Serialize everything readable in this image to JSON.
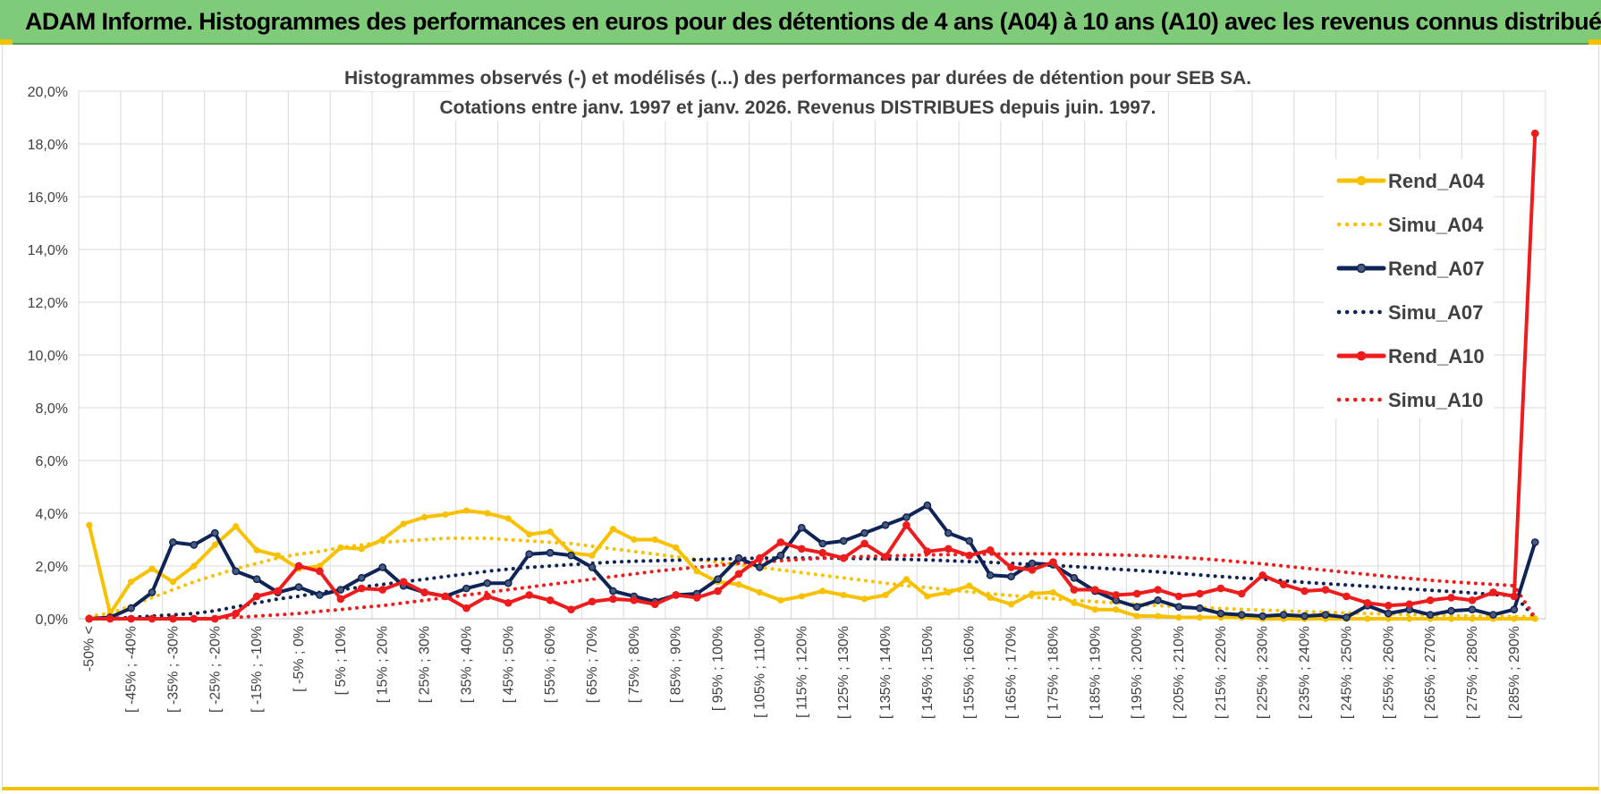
{
  "header": {
    "title": "ADAM Informe. Histogrammes des performances en euros pour des détentions de 4 ans (A04) à 10 ans (A10) avec les revenus connus distribués"
  },
  "colors": {
    "banner": "#7fcb7a",
    "accent": "#f2c200",
    "a04": "#f8c100",
    "a07": "#0e2356",
    "a10": "#ee1c1c",
    "grid": "#d9d9d9"
  },
  "chart_data": {
    "type": "line",
    "title_line1": "Histogrammes observés (-) et modélisés (...) des performances par durées de détention pour SEB SA.",
    "title_line2": "Cotations entre janv. 1997 et janv. 2026. Revenus DISTRIBUES depuis juin. 1997.",
    "ylim": [
      0,
      20
    ],
    "yticks": [
      "0,0%",
      "2,0%",
      "4,0%",
      "6,0%",
      "8,0%",
      "10,0%",
      "12,0%",
      "14,0%",
      "16,0%",
      "18,0%",
      "20,0%"
    ],
    "categories_count": 70,
    "x_labels": [
      {
        "i": 0,
        "text": "-50% <"
      },
      {
        "i": 2,
        "text": "[ -45% ; -40%"
      },
      {
        "i": 4,
        "text": "[ -35% ; -30%"
      },
      {
        "i": 6,
        "text": "[ -25% ; -20%"
      },
      {
        "i": 8,
        "text": "[ -15% ; -10%"
      },
      {
        "i": 10,
        "text": "[ -5% ; 0%"
      },
      {
        "i": 12,
        "text": "[ 5% ; 10%"
      },
      {
        "i": 14,
        "text": "[ 15% ; 20%"
      },
      {
        "i": 16,
        "text": "[ 25% ; 30%"
      },
      {
        "i": 18,
        "text": "[ 35% ; 40%"
      },
      {
        "i": 20,
        "text": "[ 45% ; 50%"
      },
      {
        "i": 22,
        "text": "[ 55% ; 60%"
      },
      {
        "i": 24,
        "text": "[ 65% ; 70%"
      },
      {
        "i": 26,
        "text": "[ 75% ; 80%"
      },
      {
        "i": 28,
        "text": "[ 85% ; 90%"
      },
      {
        "i": 30,
        "text": "[ 95% ; 100%"
      },
      {
        "i": 32,
        "text": "[ 105% ; 110%"
      },
      {
        "i": 34,
        "text": "[ 115% ; 120%"
      },
      {
        "i": 36,
        "text": "[ 125% ; 130%"
      },
      {
        "i": 38,
        "text": "[ 135% ; 140%"
      },
      {
        "i": 40,
        "text": "[ 145% ; 150%"
      },
      {
        "i": 42,
        "text": "[ 155% ; 160%"
      },
      {
        "i": 44,
        "text": "[ 165% ; 170%"
      },
      {
        "i": 46,
        "text": "[ 175% ; 180%"
      },
      {
        "i": 48,
        "text": "[ 185% ; 190%"
      },
      {
        "i": 50,
        "text": "[ 195% ; 200%"
      },
      {
        "i": 52,
        "text": "[ 205% ; 210%"
      },
      {
        "i": 54,
        "text": "[ 215% ; 220%"
      },
      {
        "i": 56,
        "text": "[ 225% ; 230%"
      },
      {
        "i": 58,
        "text": "[ 235% ; 240%"
      },
      {
        "i": 60,
        "text": "[ 245% ; 250%"
      },
      {
        "i": 62,
        "text": "[ 255% ; 260%"
      },
      {
        "i": 64,
        "text": "[ 265% ; 270%"
      },
      {
        "i": 66,
        "text": "[ 275% ; 280%"
      },
      {
        "i": 68,
        "text": "[ 285% ; 290%"
      }
    ],
    "series": [
      {
        "name": "Rend_A04",
        "style": "solid",
        "color": "#f8c100",
        "values": [
          3.55,
          0.2,
          1.4,
          1.9,
          1.4,
          2.0,
          2.8,
          3.5,
          2.6,
          2.4,
          1.9,
          2.0,
          2.7,
          2.65,
          3.0,
          3.6,
          3.85,
          3.95,
          4.1,
          4.0,
          3.8,
          3.2,
          3.3,
          2.5,
          2.4,
          3.4,
          3.0,
          3.0,
          2.7,
          1.8,
          1.4,
          1.3,
          1.0,
          0.7,
          0.85,
          1.05,
          0.9,
          0.75,
          0.9,
          1.5,
          0.85,
          1.0,
          1.25,
          0.8,
          0.55,
          0.95,
          1.0,
          0.6,
          0.35,
          0.35,
          0.1,
          0.1,
          0.05,
          0.05,
          0.05,
          0.05,
          0.0,
          0.0,
          0.0,
          0.0,
          0.0,
          0.0,
          0.0,
          0.0,
          0.0,
          0.0,
          0.0,
          0.0,
          0.0,
          0.0
        ]
      },
      {
        "name": "Simu_A04",
        "style": "dotted",
        "color": "#f8c100",
        "values": [
          0.1,
          0.2,
          0.5,
          0.8,
          1.1,
          1.4,
          1.65,
          1.9,
          2.1,
          2.3,
          2.45,
          2.55,
          2.7,
          2.8,
          2.9,
          2.95,
          3.0,
          3.05,
          3.05,
          3.05,
          3.0,
          2.95,
          2.9,
          2.85,
          2.75,
          2.65,
          2.55,
          2.45,
          2.35,
          2.25,
          2.15,
          2.05,
          1.95,
          1.85,
          1.75,
          1.65,
          1.55,
          1.45,
          1.35,
          1.25,
          1.18,
          1.1,
          1.02,
          0.95,
          0.88,
          0.82,
          0.76,
          0.7,
          0.65,
          0.6,
          0.55,
          0.5,
          0.46,
          0.42,
          0.39,
          0.36,
          0.33,
          0.3,
          0.27,
          0.25,
          0.22,
          0.2,
          0.18,
          0.16,
          0.14,
          0.12,
          0.1,
          0.09,
          0.08,
          0.07
        ]
      },
      {
        "name": "Rend_A07",
        "style": "solid-marker",
        "color": "#0e2356",
        "values": [
          0.0,
          0.05,
          0.4,
          1.0,
          2.9,
          2.8,
          3.25,
          1.8,
          1.5,
          1.0,
          1.2,
          0.9,
          1.1,
          1.55,
          1.95,
          1.25,
          1.0,
          0.85,
          1.15,
          1.35,
          1.35,
          2.45,
          2.5,
          2.4,
          1.95,
          1.05,
          0.85,
          0.65,
          0.9,
          0.95,
          1.5,
          2.3,
          1.95,
          2.4,
          3.45,
          2.85,
          2.95,
          3.25,
          3.55,
          3.85,
          4.3,
          3.25,
          2.95,
          1.65,
          1.6,
          2.1,
          2.05,
          1.55,
          1.05,
          0.7,
          0.45,
          0.7,
          0.45,
          0.4,
          0.2,
          0.15,
          0.1,
          0.15,
          0.1,
          0.15,
          0.05,
          0.5,
          0.2,
          0.35,
          0.15,
          0.3,
          0.35,
          0.15,
          0.35,
          2.9
        ]
      },
      {
        "name": "Simu_A07",
        "style": "dotted",
        "color": "#0e2356",
        "values": [
          0.0,
          0.0,
          0.05,
          0.1,
          0.15,
          0.2,
          0.3,
          0.45,
          0.6,
          0.75,
          0.85,
          1.0,
          1.1,
          1.2,
          1.3,
          1.4,
          1.5,
          1.6,
          1.7,
          1.8,
          1.88,
          1.95,
          2.0,
          2.05,
          2.1,
          2.15,
          2.18,
          2.2,
          2.22,
          2.24,
          2.26,
          2.28,
          2.3,
          2.3,
          2.3,
          2.3,
          2.29,
          2.28,
          2.27,
          2.25,
          2.23,
          2.2,
          2.17,
          2.14,
          2.1,
          2.06,
          2.02,
          1.98,
          1.93,
          1.88,
          1.83,
          1.78,
          1.72,
          1.66,
          1.6,
          1.55,
          1.5,
          1.44,
          1.38,
          1.33,
          1.28,
          1.23,
          1.18,
          1.13,
          1.08,
          1.03,
          0.98,
          0.92,
          0.88,
          0.05
        ]
      },
      {
        "name": "Rend_A10",
        "style": "solid-marker",
        "color": "#ee1c1c",
        "values": [
          0.0,
          0.0,
          0.0,
          0.0,
          0.0,
          0.0,
          0.0,
          0.2,
          0.85,
          1.05,
          2.0,
          1.8,
          0.75,
          1.15,
          1.1,
          1.4,
          1.0,
          0.85,
          0.4,
          0.85,
          0.6,
          0.9,
          0.7,
          0.35,
          0.65,
          0.75,
          0.7,
          0.55,
          0.9,
          0.8,
          1.05,
          1.7,
          2.3,
          2.9,
          2.65,
          2.5,
          2.3,
          2.85,
          2.35,
          3.55,
          2.55,
          2.65,
          2.4,
          2.6,
          1.95,
          1.85,
          2.15,
          1.1,
          1.1,
          0.9,
          0.95,
          1.1,
          0.85,
          0.95,
          1.15,
          0.95,
          1.65,
          1.3,
          1.05,
          1.1,
          0.85,
          0.6,
          0.5,
          0.55,
          0.7,
          0.8,
          0.7,
          1.0,
          0.85,
          18.4
        ]
      },
      {
        "name": "Simu_A10",
        "style": "dotted",
        "color": "#ee1c1c",
        "values": [
          0.0,
          0.0,
          0.0,
          0.0,
          0.0,
          0.0,
          0.02,
          0.05,
          0.1,
          0.15,
          0.2,
          0.28,
          0.35,
          0.43,
          0.5,
          0.6,
          0.7,
          0.8,
          0.9,
          1.0,
          1.1,
          1.2,
          1.3,
          1.4,
          1.5,
          1.6,
          1.7,
          1.8,
          1.88,
          1.95,
          2.02,
          2.1,
          2.15,
          2.2,
          2.25,
          2.3,
          2.33,
          2.36,
          2.38,
          2.4,
          2.42,
          2.43,
          2.44,
          2.45,
          2.46,
          2.46,
          2.46,
          2.45,
          2.44,
          2.42,
          2.4,
          2.37,
          2.33,
          2.28,
          2.22,
          2.15,
          2.08,
          2.0,
          1.92,
          1.84,
          1.76,
          1.68,
          1.6,
          1.53,
          1.46,
          1.4,
          1.35,
          1.3,
          1.25,
          0.05
        ]
      }
    ],
    "legend_position": "right"
  }
}
